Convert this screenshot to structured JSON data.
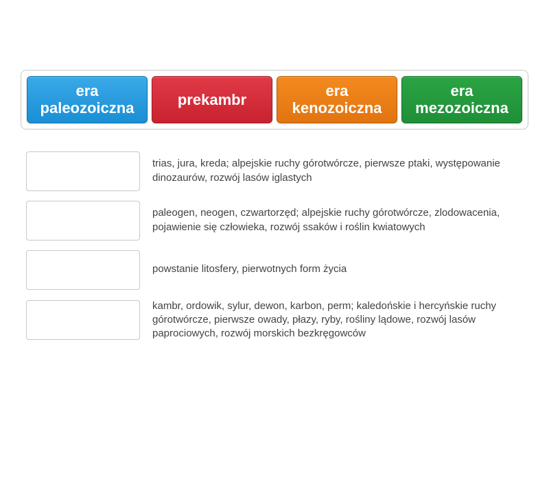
{
  "colors": {
    "background": "#ffffff",
    "border": "#c8c8c8",
    "text": "#424242",
    "choice_text": "#ffffff"
  },
  "typography": {
    "body_font": "Arial, Helvetica, sans-serif",
    "choice_fontsize": 22,
    "item_fontsize": 15
  },
  "choices": [
    {
      "id": "paleozoiczna",
      "label": "era paleozoiczna",
      "bg_top": "#3aa9e8",
      "bg_bottom": "#1a8fd4",
      "border": "#0f6fa8"
    },
    {
      "id": "prekambr",
      "label": "prekambr",
      "bg_top": "#e13a47",
      "bg_bottom": "#c9222f",
      "border": "#9c1b25"
    },
    {
      "id": "kenozoiczna",
      "label": "era kenozoiczna",
      "bg_top": "#f38a1f",
      "bg_bottom": "#e27410",
      "border": "#b55d0c"
    },
    {
      "id": "mezozoiczna",
      "label": "era mezozoiczna",
      "bg_top": "#2aa443",
      "bg_bottom": "#1f8f37",
      "border": "#166e29"
    }
  ],
  "items": [
    {
      "text": "trias, jura, kreda; alpejskie ruchy górotwórcze, pierwsze ptaki, występowanie dinozaurów, rozwój lasów iglastych"
    },
    {
      "text": "paleogen, neogen, czwartorzęd; alpejskie ruchy górotwórcze, zlodowacenia, pojawienie się człowieka, rozwój ssaków i roślin kwiatowych"
    },
    {
      "text": "powstanie litosfery, pierwotnych form życia"
    },
    {
      "text": "kambr, ordowik, sylur, dewon, karbon, perm; kaledońskie i hercyńskie ruchy górotwórcze, pierwsze owady, płazy, ryby, rośliny lądowe, rozwój lasów paprociowych, rozwój morskich bezkręgowców"
    }
  ]
}
